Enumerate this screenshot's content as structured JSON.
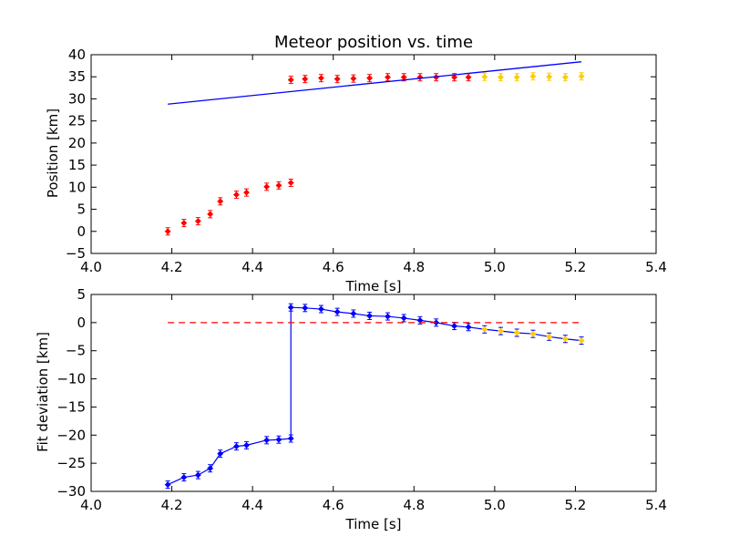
{
  "chart_data": [
    {
      "type": "scatter",
      "title": "Meteor position vs. time",
      "xlabel": "Time [s]",
      "ylabel": "Position [km]",
      "xlim": [
        4.0,
        5.4
      ],
      "ylim": [
        -5,
        40
      ],
      "xticks": [
        "4.0",
        "4.2",
        "4.4",
        "4.6",
        "4.8",
        "5.0",
        "5.2",
        "5.4"
      ],
      "yticks": [
        "−5",
        "0",
        "5",
        "10",
        "15",
        "20",
        "25",
        "30",
        "35",
        "40"
      ],
      "grid": false,
      "legend": "none",
      "series": [
        {
          "marker": "diamond",
          "color": "#ff0000",
          "errorbars": true,
          "x": [
            4.19,
            4.23,
            4.265,
            4.295,
            4.32,
            4.36,
            4.385,
            4.435,
            4.465,
            4.495,
            4.495,
            4.53,
            4.57,
            4.61,
            4.65,
            4.69,
            4.735,
            4.775,
            4.815,
            4.855,
            4.9,
            4.935
          ],
          "y": [
            0.0,
            1.9,
            2.3,
            3.9,
            6.8,
            8.3,
            8.8,
            10.1,
            10.4,
            11.0,
            34.3,
            34.5,
            34.7,
            34.5,
            34.6,
            34.7,
            34.9,
            34.9,
            34.9,
            34.9,
            34.9,
            34.9
          ]
        },
        {
          "marker": "diamond",
          "color": "#ffcc00",
          "errorbars": true,
          "x": [
            4.975,
            5.015,
            5.055,
            5.095,
            5.135,
            5.175,
            5.215
          ],
          "y": [
            35.0,
            34.9,
            34.9,
            35.1,
            35.0,
            34.9,
            35.1
          ]
        },
        {
          "type": "line",
          "color": "#0000ff",
          "x": [
            4.19,
            5.215
          ],
          "y": [
            28.8,
            38.4
          ]
        }
      ]
    },
    {
      "type": "line",
      "title": "",
      "xlabel": "Time [s]",
      "ylabel": "Fit deviation [km]",
      "xlim": [
        4.0,
        5.4
      ],
      "ylim": [
        -30,
        5
      ],
      "xticks": [
        "4.0",
        "4.2",
        "4.4",
        "4.6",
        "4.8",
        "5.0",
        "5.2",
        "5.4"
      ],
      "yticks": [
        "−30",
        "−25",
        "−20",
        "−15",
        "−10",
        "−5",
        "0",
        "5"
      ],
      "grid": false,
      "legend": "none",
      "series": [
        {
          "color": "#0000ff",
          "marker": "diamond",
          "errorbars": true,
          "x": [
            4.19,
            4.23,
            4.265,
            4.295,
            4.32,
            4.36,
            4.385,
            4.435,
            4.465,
            4.495,
            4.495,
            4.53,
            4.57,
            4.61,
            4.65,
            4.69,
            4.735,
            4.775,
            4.815,
            4.855,
            4.9,
            4.935,
            4.975,
            5.015,
            5.055,
            5.095,
            5.135,
            5.175,
            5.215
          ],
          "y": [
            -28.8,
            -27.5,
            -27.1,
            -25.9,
            -23.3,
            -22.0,
            -21.8,
            -20.9,
            -20.8,
            -20.6,
            2.7,
            2.6,
            2.4,
            1.9,
            1.6,
            1.2,
            1.1,
            0.8,
            0.4,
            0.0,
            -0.6,
            -0.8,
            -1.2,
            -1.5,
            -1.8,
            -2.0,
            -2.5,
            -2.9,
            -3.2
          ],
          "highlight_from_index": 22,
          "highlight_color": "#ffcc00"
        },
        {
          "type": "line",
          "style": "dashed",
          "color": "#ff0000",
          "x": [
            4.19,
            5.215
          ],
          "y": [
            0,
            0
          ]
        }
      ]
    }
  ]
}
